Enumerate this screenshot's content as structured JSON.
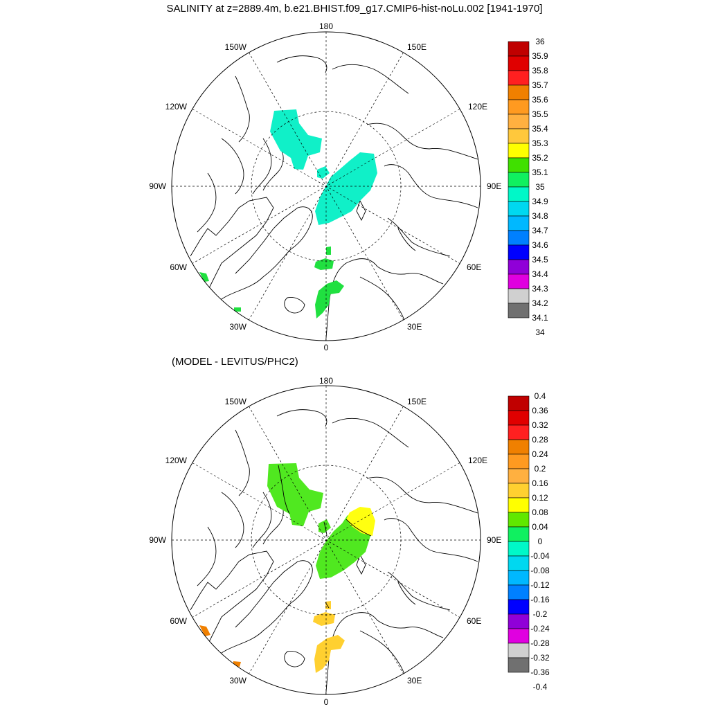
{
  "top_panel": {
    "title": "SALINITY at z=2889.4m, b.e21.BHIST.f09_g17.CMIP6-hist-noLu.002 [1941-1970]",
    "meridian_labels": [
      "180",
      "150E",
      "120E",
      "90E",
      "60E",
      "30E",
      "0",
      "30W",
      "60W",
      "90W",
      "120W",
      "150W"
    ],
    "colorbar": {
      "labels": [
        "36",
        "35.9",
        "35.8",
        "35.7",
        "35.6",
        "35.5",
        "35.4",
        "35.3",
        "35.2",
        "35.1",
        "35",
        "34.9",
        "34.8",
        "34.7",
        "34.6",
        "34.5",
        "34.4",
        "34.3",
        "34.2",
        "34.1",
        "34"
      ],
      "colors": [
        "#c00000",
        "#e00000",
        "#ff2020",
        "#f08000",
        "#ff9a20",
        "#ffb040",
        "#ffc83c",
        "#ffff00",
        "#40e000",
        "#10f060",
        "#00f8c8",
        "#00d8f0",
        "#00b8ff",
        "#0080ff",
        "#0000ff",
        "#9000d8",
        "#e000e0",
        "#d0d0d0",
        "#707070"
      ]
    },
    "fields": [
      {
        "name": "canada-basin-field",
        "color": "#10f0c8"
      },
      {
        "name": "eurasian-basin-field",
        "color": "#10f0c8"
      },
      {
        "name": "fram-field",
        "color": "#20e040"
      },
      {
        "name": "greenland-sea-field",
        "color": "#20e040"
      },
      {
        "name": "labrador-field",
        "color": "#20e040"
      },
      {
        "name": "iceland-field",
        "color": "#20e040"
      }
    ]
  },
  "bottom_panel": {
    "title": "(MODEL - LEVITUS/PHC2)",
    "meridian_labels": [
      "180",
      "150E",
      "120E",
      "90E",
      "60E",
      "30E",
      "0",
      "30W",
      "60W",
      "90W",
      "120W",
      "150W"
    ],
    "colorbar": {
      "labels": [
        "0.4",
        "0.36",
        "0.32",
        "0.28",
        "0.24",
        "0.2",
        "0.16",
        "0.12",
        "0.08",
        "0.04",
        "0",
        "-0.04",
        "-0.08",
        "-0.12",
        "-0.16",
        "-0.2",
        "-0.24",
        "-0.28",
        "-0.32",
        "-0.36",
        "-0.4"
      ],
      "colors": [
        "#c00000",
        "#e00000",
        "#ff2020",
        "#f08000",
        "#ff9a20",
        "#ffb040",
        "#ffd030",
        "#ffff00",
        "#60e800",
        "#10f060",
        "#00f8c8",
        "#00d8f0",
        "#00b8ff",
        "#0080ff",
        "#0000ff",
        "#9000d8",
        "#e000e0",
        "#d0d0d0",
        "#707070"
      ]
    },
    "fields": [
      {
        "name": "canada-basin-field",
        "color": "#50e820"
      },
      {
        "name": "eurasian-basin-field",
        "color": "#50e820"
      },
      {
        "name": "eurasian-positive-field",
        "color": "#ffff10"
      },
      {
        "name": "fram-field",
        "color": "#ffd030"
      },
      {
        "name": "greenland-sea-field",
        "color": "#ffd030"
      },
      {
        "name": "labrador-field",
        "color": "#f08000"
      },
      {
        "name": "iceland-field",
        "color": "#f08000"
      }
    ]
  }
}
